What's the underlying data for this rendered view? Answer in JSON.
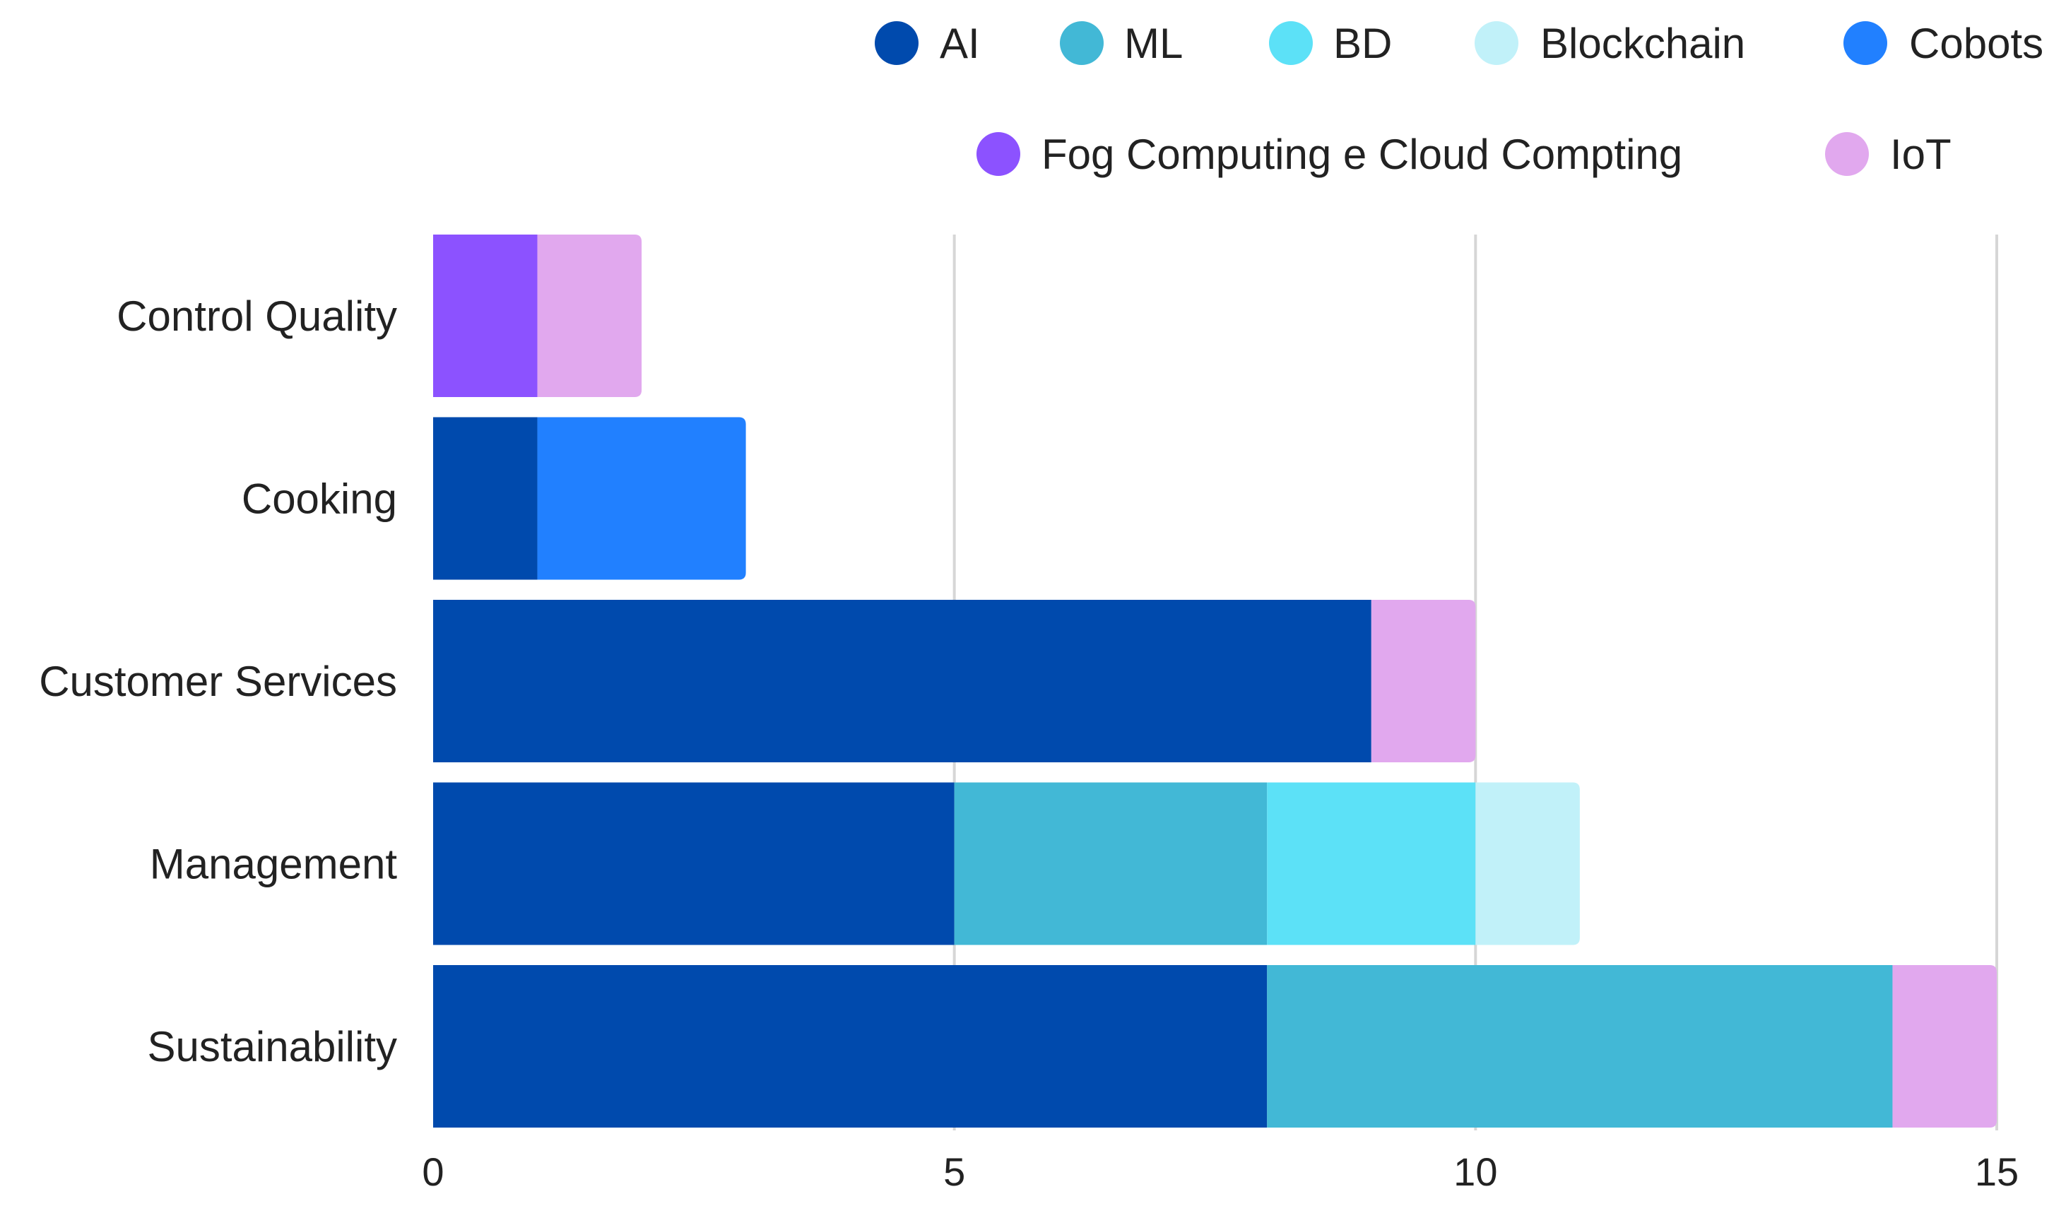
{
  "chart_data": {
    "type": "bar",
    "orientation": "horizontal",
    "stacked": true,
    "title": "",
    "xlabel": "",
    "ylabel": "",
    "xlim": [
      0,
      15
    ],
    "x_ticks": [
      "0",
      "5",
      "10",
      "15"
    ],
    "grid": true,
    "legend_position": "top-right",
    "categories": [
      "Control Quality",
      "Cooking",
      "Customer Services",
      "Management",
      "Sustainability"
    ],
    "series": [
      {
        "name": "AI",
        "color": "#004AAD",
        "values": [
          0,
          1,
          9,
          5,
          8
        ]
      },
      {
        "name": "ML",
        "color": "#42B8D6",
        "values": [
          0,
          0,
          0,
          3,
          6
        ]
      },
      {
        "name": "BD",
        "color": "#5CE1F7",
        "values": [
          0,
          0,
          0,
          2,
          0
        ]
      },
      {
        "name": "Blockchain",
        "color": "#C1F1F9",
        "values": [
          0,
          0,
          0,
          1,
          0
        ]
      },
      {
        "name": "Cobots",
        "color": "#2180FF",
        "values": [
          0,
          2,
          0,
          0,
          0
        ]
      },
      {
        "name": "Fog Computing e Cloud Compting",
        "color": "#8C52FF",
        "values": [
          1,
          0,
          0,
          0,
          0
        ]
      },
      {
        "name": "IoT",
        "color": "#E1A8EE",
        "values": [
          1,
          0,
          1,
          0,
          1
        ]
      }
    ]
  }
}
